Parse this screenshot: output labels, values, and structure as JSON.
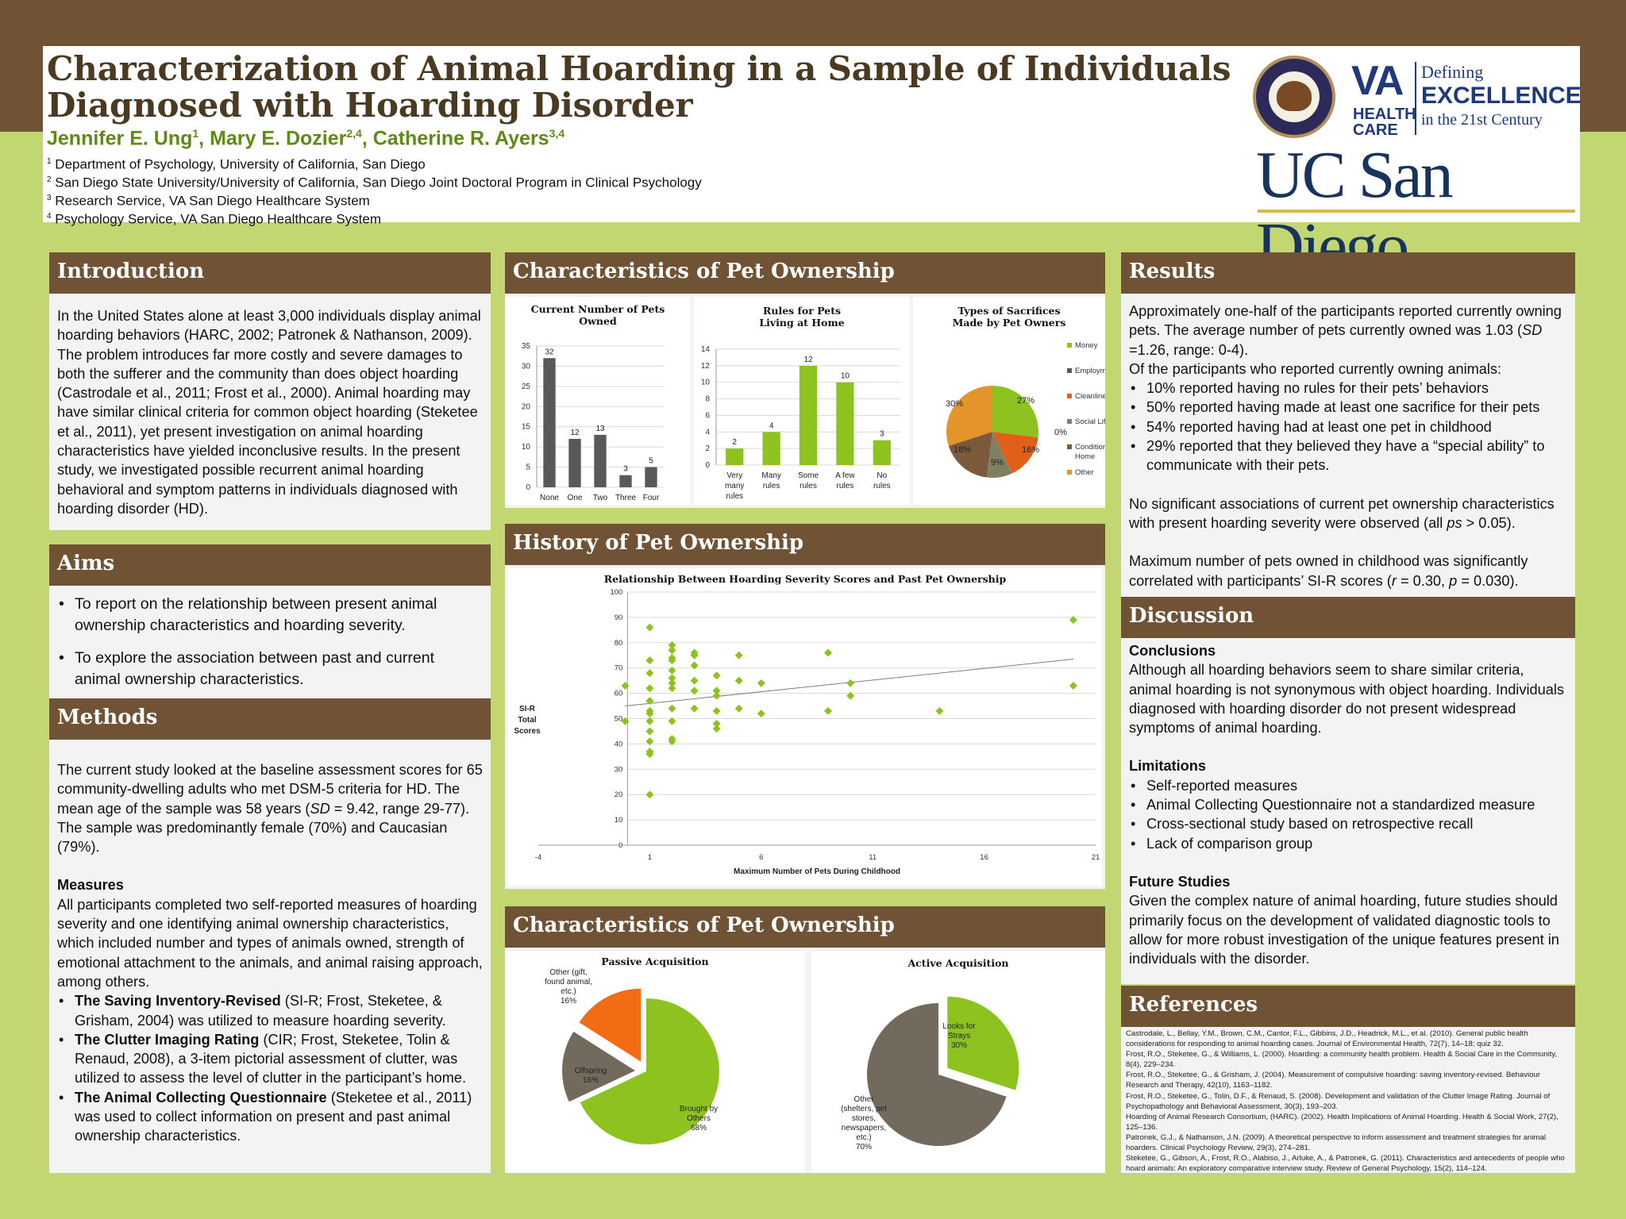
{
  "header": {
    "title_line1": "Characterization of Animal Hoarding in a Sample of Individuals",
    "title_line2": "Diagnosed with Hoarding Disorder",
    "authors": [
      {
        "name": "Jennifer E. Ung",
        "sup": "1"
      },
      {
        "name": "Mary E. Dozier",
        "sup": "2,4"
      },
      {
        "name": "Catherine R. Ayers",
        "sup": "3,4"
      }
    ],
    "affiliations": [
      {
        "sup": "1",
        "text": "Department of Psychology, University of California, San Diego"
      },
      {
        "sup": "2",
        "text": "San Diego State University/University of California, San Diego  Joint Doctoral Program in Clinical Psychology"
      },
      {
        "sup": "3",
        "text": "Research Service, VA San Diego Healthcare System"
      },
      {
        "sup": "4",
        "text": "Psychology Service, VA San Diego Healthcare System"
      }
    ],
    "va_logo": {
      "big": "VA",
      "small1": "HEALTH",
      "small2": "CARE",
      "line1": "Defining",
      "line2": "EXCELLENCE",
      "line3": "in the 21st Century"
    },
    "uc_logo": "UC San Diego",
    "colors": {
      "brown": "#6f5334",
      "green_bg": "#c2d771",
      "accent_green": "#8dc21f",
      "gray_bar": "#595959"
    }
  },
  "introduction": {
    "title": "Introduction",
    "text": "In the United States alone at least 3,000 individuals display animal hoarding behaviors (HARC, 2002; Patronek & Nathanson, 2009). The problem introduces far more costly and severe damages to both the sufferer and the community than does object hoarding (Castrodale et al., 2011; Frost et al., 2000). Animal hoarding may have similar clinical criteria for common object hoarding (Steketee et al., 2011), yet present investigation on animal hoarding characteristics have yielded inconclusive results. In the present study, we investigated possible recurrent animal hoarding behavioral and symptom patterns in individuals diagnosed with hoarding disorder (HD)."
  },
  "aims": {
    "title": "Aims",
    "items": [
      "To report on the relationship between present animal ownership characteristics and hoarding severity.",
      "To explore the association between past and current animal ownership characteristics."
    ]
  },
  "methods": {
    "title": "Methods",
    "p1_a": "The current study looked at the baseline assessment scores for 65 community-dwelling adults who met DSM-5 criteria for HD. The mean age of the sample was 58 years (",
    "p1_sd": "SD",
    "p1_b": " = 9.42, range 29-77).  The sample was predominantly female (70%) and Caucasian (79%).",
    "measures_title": "Measures",
    "measures_text": "All participants completed two self-reported measures of hoarding severity and one identifying animal ownership characteristics, which included number and types of animals owned, strength of emotional attachment to the animals, and animal raising approach, among others.",
    "m1_bold": "The Saving Inventory-Revised",
    "m1_text": "  (SI-R; Frost, Steketee, & Grisham, 2004) was utilized to measure hoarding severity.",
    "m2_bold": "The Clutter Imaging Rating",
    "m2_text": " (CIR; Frost, Steketee, Tolin & Renaud, 2008), a 3-item pictorial assessment of clutter, was utilized to assess the level of clutter in the participant’s home.",
    "m3_bold": "The Animal Collecting Questionnaire",
    "m3_text": " (Steketee et al., 2011) was used to collect information on present and past animal ownership characteristics."
  },
  "pet_char_top": {
    "title": "Characteristics of Pet Ownership"
  },
  "history": {
    "title": "History of Pet Ownership"
  },
  "pet_char_bottom": {
    "title": "Characteristics of Pet Ownership"
  },
  "results": {
    "title": "Results",
    "p1_a": "Approximately one-half of the participants reported currently owning pets. The average number of pets currently owned was 1.03 (",
    "p1_sd": "SD",
    "p1_b": " =1.26, range: 0-4).",
    "p2": "Of the participants who reported currently owning animals:",
    "items": [
      "10% reported having no rules for their pets’ behaviors",
      "50% reported having made at least one sacrifice for their pets",
      "54% reported having had at least one pet in childhood",
      "29% reported that they believed they have a “special ability” to communicate with their pets."
    ],
    "p3_a": "No significant associations of current pet ownership characteristics with present hoarding severity were observed (all ",
    "p3_ps": "ps",
    "p3_b": " > 0.05).",
    "p4_a": "Maximum number of pets owned in childhood was significantly correlated with participants’ SI-R scores (",
    "p4_r": "r",
    "p4_b": " = 0.30, ",
    "p4_p": "p",
    "p4_c": " = 0.030)."
  },
  "discussion": {
    "title": "Discussion",
    "conclusions_title": "Conclusions",
    "conclusions": "Although all hoarding behaviors seem to share similar criteria, animal hoarding is not synonymous with object hoarding. Individuals diagnosed with hoarding disorder do not present widespread symptoms of animal hoarding.",
    "limitations_title": "Limitations",
    "limitations": [
      "Self-reported measures",
      "Animal Collecting Questionnaire not a standardized measure",
      "Cross-sectional study based on retrospective recall",
      "Lack of comparison group"
    ],
    "future_title": "Future Studies",
    "future": "Given the complex nature of animal hoarding, future studies should primarily focus on the development of validated diagnostic tools to allow for more robust investigation of the unique features present in individuals with the disorder."
  },
  "references": {
    "title": "References",
    "items": [
      "Castrodale, L., Bellay, Y.M., Brown, C.M., Cantor, F.L., Gibbins, J.D., Headrick, M.L., et al. (2010). General public health considerations for responding to animal hoarding cases. Journal of Environmental Health, 72(7), 14–18; quiz 32.",
      "Frost, R.O., Steketee, G., & Williams, L. (2000). Hoarding: a community health problem. Health & Social Care in the Community, 8(4), 229–234.",
      "Frost, R.O., Steketee, G., & Grisham, J. (2004). Measurement of compulsive hoarding: saving inventory-revised. Behaviour Research and Therapy, 42(10), 1163–1182.",
      "Frost, R.O., Steketee, G., Tolin, D.F., & Renaud, S. (2008). Development and validation of the Clutter Image Rating. Journal of Psychopathology and Behavioral Assessment, 30(3), 193–203.",
      "Hoarding of Animal Research Consortium, (HARC). (2002). Health Implications of Animal Hoarding. Health & Social Work, 27(2), 125–136.",
      "Patronek, G.J., & Nathanson, J.N. (2009). A theoretical perspective to inform assessment and treatment strategies for animal hoarders. Clinical Psychology Review, 29(3), 274–281.",
      "Steketee, G., Gibson, A., Frost, R.O., Alabiso, J., Arluke, A., & Patronek, G. (2011). Characteristics and antecedents of people who hoard animals: An exploratory comparative interview study. Review of General Psychology, 15(2), 114–124."
    ]
  },
  "chart_data": [
    {
      "id": "current_pets",
      "type": "bar",
      "title": "Current Number of Pets Owned",
      "categories": [
        "None",
        "One",
        "Two",
        "Three",
        "Four"
      ],
      "values": [
        32,
        12,
        13,
        3,
        5
      ],
      "ylim": [
        0,
        35
      ],
      "yticks": [
        0,
        5,
        10,
        15,
        20,
        25,
        30,
        35
      ],
      "color": "#595959"
    },
    {
      "id": "rules",
      "type": "bar",
      "title": "Rules for Pets Living at Home",
      "categories": [
        "Very many rules",
        "Many rules",
        "Some rules",
        "A few rules",
        "No rules"
      ],
      "values": [
        2,
        4,
        12,
        10,
        3
      ],
      "ylim": [
        0,
        14
      ],
      "yticks": [
        0,
        2,
        4,
        6,
        8,
        10,
        12,
        14
      ],
      "color": "#8dc21f"
    },
    {
      "id": "sacrifices",
      "type": "pie",
      "title": "Types of Sacrifices Made by Pet Owners",
      "slices": [
        {
          "label": "Money",
          "value": 27,
          "text": "27%",
          "color": "#8dc21f"
        },
        {
          "label": "Employment",
          "value": 0,
          "text": "0%",
          "color": "#595959"
        },
        {
          "label": "Cleanliness",
          "value": 16,
          "text": "16%",
          "color": "#e0601a"
        },
        {
          "label": "Social Life",
          "value": 9,
          "text": "9%",
          "color": "#7f7f62"
        },
        {
          "label": "Condition of Home",
          "value": 18,
          "text": "18%",
          "color": "#7a5a3a"
        },
        {
          "label": "Other",
          "value": 30,
          "text": "30%",
          "color": "#e3952c"
        }
      ]
    },
    {
      "id": "scatter",
      "type": "scatter",
      "title": "Relationship Between Hoarding Severity Scores and Past Pet Ownership",
      "xlabel": "Maximum Number of Pets During Childhood",
      "ylabel_lines": [
        "SI-R",
        "Total",
        "Scores"
      ],
      "xlim": [
        -4,
        21
      ],
      "xticks": [
        -4,
        1,
        6,
        11,
        16,
        21
      ],
      "ylim": [
        0,
        100
      ],
      "yticks": [
        0,
        10,
        20,
        30,
        40,
        50,
        60,
        70,
        80,
        90,
        100
      ],
      "points": [
        [
          -0.1,
          63
        ],
        [
          -0.1,
          49
        ],
        [
          1,
          86
        ],
        [
          1,
          73
        ],
        [
          1,
          68
        ],
        [
          1,
          62
        ],
        [
          1,
          57
        ],
        [
          1,
          53
        ],
        [
          1,
          52
        ],
        [
          1,
          49
        ],
        [
          1,
          45
        ],
        [
          1,
          41
        ],
        [
          1,
          37
        ],
        [
          1,
          36
        ],
        [
          1,
          20
        ],
        [
          2,
          79
        ],
        [
          2,
          77
        ],
        [
          2,
          74
        ],
        [
          2,
          73
        ],
        [
          2,
          69
        ],
        [
          2,
          66
        ],
        [
          2,
          64
        ],
        [
          2,
          62
        ],
        [
          2,
          54
        ],
        [
          2,
          49
        ],
        [
          2,
          42
        ],
        [
          2,
          41
        ],
        [
          3,
          76
        ],
        [
          3,
          75
        ],
        [
          3,
          71
        ],
        [
          3,
          65
        ],
        [
          3,
          61
        ],
        [
          3,
          54
        ],
        [
          4,
          67
        ],
        [
          4,
          61
        ],
        [
          4,
          59
        ],
        [
          4,
          53
        ],
        [
          4,
          48
        ],
        [
          4,
          46
        ],
        [
          5,
          75
        ],
        [
          5,
          65
        ],
        [
          5,
          54
        ],
        [
          6,
          64
        ],
        [
          6,
          52
        ],
        [
          9,
          76
        ],
        [
          9,
          53
        ],
        [
          10,
          64
        ],
        [
          10,
          59
        ],
        [
          14,
          53
        ],
        [
          20,
          89
        ],
        [
          20,
          63
        ]
      ],
      "trend": [
        [
          -0.1,
          55
        ],
        [
          20,
          73.5
        ]
      ],
      "color": "#8dc21f"
    },
    {
      "id": "passive",
      "type": "pie",
      "title": "Passive Acquisition",
      "slices": [
        {
          "label": "Brought by Others",
          "value": 68,
          "text": "68%",
          "color": "#8dc21f"
        },
        {
          "label": "Offspring",
          "value": 16,
          "text": "16%",
          "color": "#736a5e"
        },
        {
          "label": "Other (gift, found animal, etc.)",
          "value": 16,
          "text": "16%",
          "color": "#f26c13"
        }
      ]
    },
    {
      "id": "active",
      "type": "pie",
      "title": "Active Acquisition",
      "slices": [
        {
          "label": "Looks for Strays",
          "value": 30,
          "text": "30%",
          "color": "#8dc21f"
        },
        {
          "label": "Other (shelters, pet stores, newspapers, etc.)",
          "value": 70,
          "text": "70%",
          "color": "#736a5e"
        }
      ]
    }
  ]
}
